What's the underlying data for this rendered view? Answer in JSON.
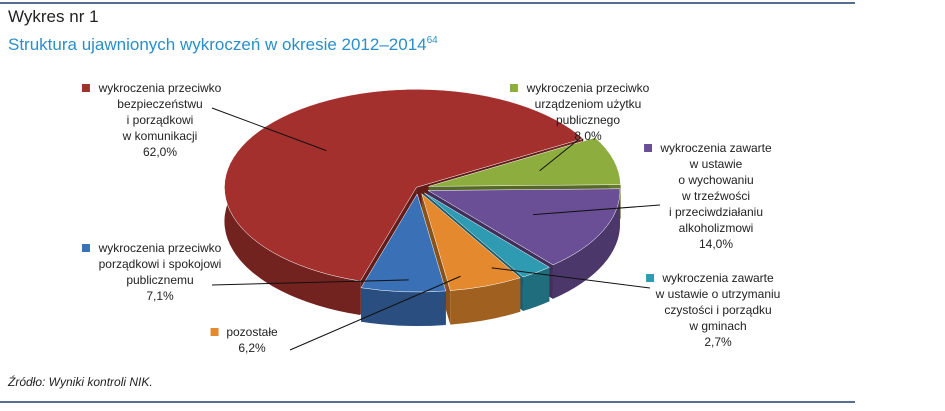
{
  "chart_data": {
    "type": "pie",
    "title": "Wykres nr 1",
    "subtitle": "Struktura ujawnionych wykroczeń w okresie 2012–2014",
    "subtitle_note": "64",
    "categories": [
      "wykroczenia przeciwko\nbezpieczeństwu\ni porządkowi\nw komunikacji",
      "wykroczenia przeciwko\nurządzeniom użytku\npublicznego",
      "wykroczenia zawarte\nw ustawie\no wychowaniu\nw trzeźwości\ni przeciwdziałaniu\nalkoholizmowi",
      "wykroczenia zawarte\nw ustawie o utrzymaniu\nczystości i porządku\nw gminach",
      "pozostałe",
      "wykroczenia przeciwko\nporządkowi i spokojowi\npublicznemu"
    ],
    "values": [
      62.0,
      8.0,
      14.0,
      2.7,
      6.2,
      7.1
    ],
    "value_labels": [
      "62,0%",
      "8,0%",
      "14,0%",
      "2,7%",
      "6,2%",
      "7,1%"
    ],
    "colors": [
      "#a3302d",
      "#8dae3f",
      "#6b4f96",
      "#2e9bb3",
      "#e4892d",
      "#3a70b5"
    ],
    "source": "Źródło: Wyniki kontroli NIK."
  }
}
